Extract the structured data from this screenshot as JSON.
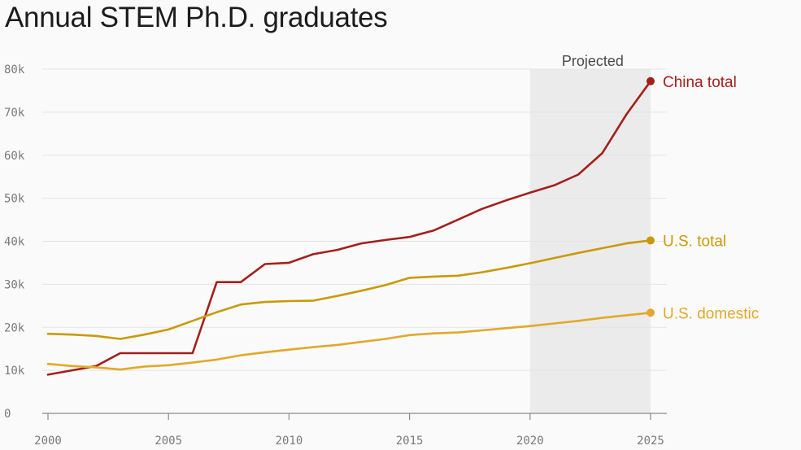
{
  "chart_data": {
    "type": "line",
    "title": "Annual STEM Ph.D. graduates",
    "xlim": [
      2000,
      2025
    ],
    "ylim": [
      0,
      80000
    ],
    "x_ticks": [
      2000,
      2005,
      2010,
      2015,
      2020,
      2025
    ],
    "x_tick_labels": [
      "2000",
      "2005",
      "2010",
      "2015",
      "2020",
      "2025"
    ],
    "y_ticks": [
      0,
      10000,
      20000,
      30000,
      40000,
      50000,
      60000,
      70000,
      80000
    ],
    "y_tick_labels": [
      "0",
      "10k",
      "20k",
      "30k",
      "40k",
      "50k",
      "60k",
      "70k",
      "80k"
    ],
    "grid": true,
    "projected_region": {
      "label": "Projected",
      "x_start": 2020,
      "x_end": 2025
    },
    "series": [
      {
        "name": "China total",
        "color": "#a3201c",
        "x": [
          2000,
          2001,
          2002,
          2003,
          2004,
          2005,
          2006,
          2007,
          2008,
          2009,
          2010,
          2011,
          2012,
          2013,
          2014,
          2015,
          2016,
          2017,
          2018,
          2019,
          2020,
          2021,
          2022,
          2023,
          2024,
          2025
        ],
        "values": [
          9000,
          10000,
          11000,
          14000,
          14000,
          14000,
          14000,
          30500,
          30500,
          34700,
          35000,
          37000,
          38000,
          39500,
          40300,
          41000,
          42500,
          45000,
          47500,
          49500,
          51300,
          53000,
          55500,
          60500,
          69500,
          77200
        ]
      },
      {
        "name": "U.S. total",
        "color": "#c99a08",
        "x": [
          2000,
          2001,
          2002,
          2003,
          2004,
          2005,
          2006,
          2007,
          2008,
          2009,
          2010,
          2011,
          2012,
          2013,
          2014,
          2015,
          2016,
          2017,
          2018,
          2019,
          2020,
          2021,
          2022,
          2023,
          2024,
          2025
        ],
        "values": [
          18500,
          18300,
          18000,
          17300,
          18300,
          19500,
          21500,
          23500,
          25300,
          25900,
          26100,
          26200,
          27300,
          28500,
          29800,
          31500,
          31800,
          32000,
          32800,
          33800,
          34900,
          36100,
          37300,
          38400,
          39500,
          40200
        ]
      },
      {
        "name": "U.S. domestic",
        "color": "#e3a82b",
        "x": [
          2000,
          2001,
          2002,
          2003,
          2004,
          2005,
          2006,
          2007,
          2008,
          2009,
          2010,
          2011,
          2012,
          2013,
          2014,
          2015,
          2016,
          2017,
          2018,
          2019,
          2020,
          2021,
          2022,
          2023,
          2024,
          2025
        ],
        "values": [
          11500,
          11000,
          10700,
          10200,
          10900,
          11200,
          11800,
          12500,
          13500,
          14200,
          14800,
          15400,
          15900,
          16600,
          17300,
          18200,
          18600,
          18800,
          19300,
          19800,
          20300,
          20900,
          21500,
          22200,
          22800,
          23400
        ]
      }
    ]
  }
}
